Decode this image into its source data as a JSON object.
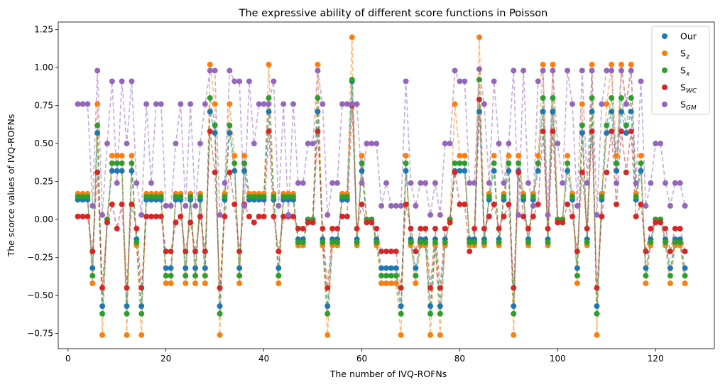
{
  "chart_data": {
    "type": "line",
    "title": "The expressive ability of different score functions in Poisson",
    "xlabel": "The number of IVQ-ROFNs",
    "ylabel": "The scorce values  of IVQ-ROFNs",
    "xlim": [
      -2,
      132
    ],
    "ylim": [
      -0.85,
      1.3
    ],
    "xticks": [
      "0",
      "20",
      "40",
      "60",
      "80",
      "100",
      "120"
    ],
    "yticks": [
      "−0.75",
      "−0.50",
      "−0.25",
      "0.00",
      "0.25",
      "0.50",
      "0.75",
      "1.00",
      "1.25"
    ],
    "legend_position": "top-right",
    "x": [
      2,
      3,
      4,
      5,
      6,
      7,
      8,
      9,
      10,
      11,
      12,
      13,
      14,
      15,
      16,
      17,
      18,
      19,
      20,
      21,
      22,
      23,
      24,
      25,
      26,
      27,
      28,
      29,
      30,
      31,
      32,
      33,
      34,
      35,
      36,
      37,
      38,
      39,
      40,
      41,
      42,
      43,
      44,
      45,
      46,
      47,
      48,
      49,
      50,
      51,
      52,
      53,
      54,
      55,
      56,
      57,
      58,
      59,
      60,
      61,
      62,
      63,
      64,
      65,
      66,
      67,
      68,
      69,
      70,
      71,
      72,
      73,
      74,
      75,
      76,
      77,
      78,
      79,
      80,
      81,
      82,
      83,
      84,
      85,
      86,
      87,
      88,
      89,
      90,
      91,
      92,
      93,
      94,
      95,
      96,
      97,
      98,
      99,
      100,
      101,
      102,
      103,
      104,
      105,
      106,
      107,
      108,
      109,
      110,
      111,
      112,
      113,
      114,
      115,
      116,
      117,
      118,
      119,
      120,
      121,
      122,
      123,
      124,
      125,
      126
    ],
    "series": [
      {
        "name": "Our",
        "sub": "",
        "color": "#1f77b4",
        "values": [
          0.13,
          0.13,
          0.13,
          -0.32,
          0.57,
          -0.57,
          0.0,
          0.32,
          0.32,
          0.32,
          -0.57,
          0.32,
          -0.13,
          -0.57,
          0.13,
          0.13,
          0.13,
          0.13,
          -0.32,
          -0.32,
          0.13,
          0.13,
          -0.32,
          0.13,
          -0.32,
          0.13,
          -0.32,
          0.71,
          0.57,
          -0.57,
          0.13,
          0.57,
          0.32,
          -0.32,
          0.32,
          0.13,
          0.13,
          0.13,
          0.13,
          0.71,
          0.13,
          -0.32,
          0.13,
          0.13,
          0.13,
          -0.13,
          -0.13,
          0.0,
          0.0,
          0.71,
          -0.13,
          -0.57,
          -0.13,
          -0.13,
          0.13,
          0.13,
          0.91,
          -0.13,
          0.32,
          0.0,
          0.0,
          -0.13,
          -0.32,
          -0.32,
          -0.32,
          -0.32,
          -0.57,
          0.32,
          -0.13,
          -0.32,
          -0.13,
          -0.13,
          -0.57,
          -0.13,
          -0.57,
          -0.13,
          0.0,
          0.32,
          0.32,
          0.32,
          -0.13,
          -0.13,
          0.71,
          -0.13,
          0.13,
          0.32,
          -0.13,
          0.13,
          0.32,
          -0.57,
          0.32,
          0.13,
          -0.13,
          0.13,
          0.32,
          0.71,
          -0.13,
          0.71,
          0.0,
          0.0,
          0.32,
          0.13,
          -0.32,
          0.57,
          -0.13,
          0.71,
          -0.57,
          0.13,
          0.57,
          0.71,
          0.32,
          0.71,
          0.57,
          0.71,
          0.13,
          0.32,
          -0.32,
          -0.13,
          0.0,
          0.0,
          -0.13,
          -0.32,
          -0.13,
          -0.13,
          -0.32
        ]
      },
      {
        "name": "S",
        "sub": "z",
        "color": "#ff7f0e",
        "values": [
          0.17,
          0.17,
          0.17,
          -0.42,
          0.76,
          -0.76,
          0.0,
          0.42,
          0.42,
          0.42,
          -0.76,
          0.42,
          -0.17,
          -0.76,
          0.17,
          0.17,
          0.17,
          0.17,
          -0.42,
          -0.42,
          0.17,
          0.17,
          -0.42,
          0.17,
          -0.42,
          0.17,
          -0.42,
          1.02,
          0.76,
          -0.76,
          0.17,
          0.76,
          0.42,
          -0.42,
          0.42,
          0.17,
          0.17,
          0.17,
          0.17,
          1.02,
          0.17,
          -0.42,
          0.17,
          0.17,
          0.17,
          -0.17,
          -0.17,
          0.0,
          0.0,
          1.02,
          -0.17,
          -0.76,
          -0.17,
          -0.17,
          0.17,
          0.17,
          1.2,
          -0.17,
          0.42,
          0.0,
          0.0,
          -0.17,
          -0.42,
          -0.42,
          -0.42,
          -0.42,
          -0.76,
          0.42,
          -0.17,
          -0.42,
          -0.17,
          -0.17,
          -0.76,
          -0.17,
          -0.76,
          -0.17,
          0.0,
          0.76,
          0.42,
          0.42,
          -0.17,
          -0.17,
          1.2,
          -0.17,
          0.17,
          0.42,
          -0.17,
          0.17,
          0.42,
          -0.76,
          0.42,
          0.17,
          -0.17,
          0.17,
          0.42,
          1.02,
          -0.17,
          1.02,
          0.0,
          0.0,
          0.42,
          0.17,
          -0.42,
          0.76,
          -0.17,
          1.02,
          -0.76,
          0.17,
          0.76,
          1.02,
          0.42,
          1.02,
          0.76,
          1.02,
          0.17,
          0.42,
          -0.42,
          -0.17,
          0.0,
          0.0,
          -0.17,
          -0.42,
          -0.17,
          -0.17,
          -0.42
        ]
      },
      {
        "name": "S",
        "sub": "x",
        "color": "#2ca02c",
        "values": [
          0.15,
          0.15,
          0.15,
          -0.37,
          0.62,
          -0.62,
          0.0,
          0.37,
          0.37,
          0.37,
          -0.62,
          0.37,
          -0.15,
          -0.62,
          0.15,
          0.15,
          0.15,
          0.15,
          -0.37,
          -0.37,
          0.15,
          0.15,
          -0.37,
          0.15,
          -0.37,
          0.15,
          -0.37,
          0.8,
          0.62,
          -0.62,
          0.15,
          0.62,
          0.37,
          -0.37,
          0.37,
          0.15,
          0.15,
          0.15,
          0.15,
          0.8,
          0.15,
          -0.37,
          0.15,
          0.15,
          0.15,
          -0.15,
          -0.15,
          0.0,
          0.0,
          0.8,
          -0.15,
          -0.62,
          -0.15,
          -0.15,
          0.15,
          0.15,
          0.92,
          -0.15,
          0.37,
          0.0,
          0.0,
          -0.15,
          -0.37,
          -0.37,
          -0.37,
          -0.37,
          -0.62,
          0.37,
          -0.15,
          -0.37,
          -0.15,
          -0.15,
          -0.62,
          -0.15,
          -0.62,
          -0.15,
          0.0,
          0.37,
          0.37,
          0.37,
          -0.15,
          -0.15,
          0.92,
          -0.15,
          0.15,
          0.37,
          -0.15,
          0.15,
          0.37,
          -0.62,
          0.37,
          0.15,
          -0.15,
          0.15,
          0.37,
          0.8,
          -0.15,
          0.8,
          0.0,
          0.0,
          0.37,
          0.15,
          -0.37,
          0.62,
          -0.15,
          0.8,
          -0.62,
          0.15,
          0.62,
          0.8,
          0.37,
          0.8,
          0.62,
          0.8,
          0.15,
          0.37,
          -0.37,
          -0.15,
          0.0,
          0.0,
          -0.15,
          -0.37,
          -0.15,
          -0.15,
          -0.37
        ]
      },
      {
        "name": "S",
        "sub": "WC",
        "color": "#d62728",
        "values": [
          0.02,
          0.02,
          0.02,
          -0.21,
          0.31,
          -0.45,
          -0.02,
          0.1,
          -0.06,
          0.1,
          -0.45,
          0.1,
          -0.06,
          -0.45,
          0.02,
          0.02,
          0.02,
          0.02,
          -0.21,
          -0.21,
          -0.02,
          0.02,
          -0.21,
          -0.02,
          -0.21,
          0.02,
          -0.21,
          0.58,
          0.31,
          -0.45,
          0.02,
          0.31,
          0.1,
          -0.21,
          0.1,
          0.02,
          -0.02,
          0.02,
          0.02,
          0.58,
          0.02,
          -0.21,
          0.02,
          0.02,
          0.02,
          -0.06,
          -0.06,
          -0.02,
          -0.02,
          0.58,
          -0.06,
          -0.45,
          -0.06,
          -0.06,
          0.02,
          0.02,
          0.75,
          -0.06,
          0.1,
          -0.02,
          -0.02,
          -0.06,
          -0.21,
          -0.21,
          -0.21,
          -0.21,
          -0.45,
          0.1,
          -0.06,
          -0.21,
          -0.06,
          -0.06,
          -0.45,
          -0.06,
          -0.45,
          -0.06,
          -0.02,
          0.31,
          0.1,
          0.1,
          -0.21,
          -0.06,
          0.79,
          -0.06,
          0.02,
          0.1,
          -0.06,
          0.02,
          0.1,
          -0.45,
          0.31,
          0.02,
          -0.06,
          0.02,
          0.1,
          0.58,
          -0.06,
          0.58,
          -0.02,
          -0.02,
          0.1,
          0.02,
          -0.21,
          0.31,
          -0.06,
          0.58,
          -0.45,
          0.02,
          0.31,
          0.58,
          0.1,
          0.58,
          0.31,
          0.58,
          0.02,
          0.1,
          -0.21,
          -0.06,
          -0.02,
          -0.02,
          -0.06,
          -0.21,
          -0.06,
          -0.06,
          -0.21
        ]
      },
      {
        "name": "S",
        "sub": "GM",
        "color": "#9467bd",
        "values": [
          0.76,
          0.76,
          0.76,
          0.09,
          0.98,
          0.03,
          0.5,
          0.91,
          0.24,
          0.91,
          0.5,
          0.91,
          0.24,
          0.03,
          0.76,
          0.24,
          0.76,
          0.76,
          0.09,
          0.09,
          0.5,
          0.76,
          0.09,
          0.76,
          0.09,
          0.5,
          0.76,
          0.98,
          0.98,
          0.03,
          0.24,
          0.98,
          0.91,
          0.91,
          0.09,
          0.91,
          0.5,
          0.76,
          0.76,
          0.76,
          0.91,
          0.09,
          0.76,
          0.03,
          0.76,
          0.24,
          0.24,
          0.5,
          0.5,
          0.98,
          0.76,
          0.03,
          0.24,
          0.24,
          0.76,
          0.76,
          0.76,
          0.76,
          0.24,
          0.5,
          0.5,
          0.5,
          0.09,
          0.24,
          0.09,
          0.09,
          0.09,
          0.91,
          0.24,
          0.09,
          0.24,
          0.24,
          0.03,
          0.24,
          0.03,
          0.5,
          0.5,
          0.98,
          0.91,
          0.91,
          0.24,
          0.24,
          0.99,
          0.76,
          0.24,
          0.91,
          0.5,
          0.24,
          0.5,
          0.98,
          0.03,
          0.98,
          0.24,
          0.09,
          0.91,
          0.98,
          0.03,
          0.98,
          0.5,
          0.24,
          0.98,
          0.76,
          0.09,
          0.98,
          0.24,
          0.98,
          0.03,
          0.76,
          0.98,
          0.98,
          0.24,
          0.98,
          0.76,
          0.98,
          0.24,
          0.91,
          0.09,
          0.24,
          0.5,
          0.5,
          0.24,
          0.09,
          0.24,
          0.24,
          0.09
        ]
      }
    ]
  }
}
